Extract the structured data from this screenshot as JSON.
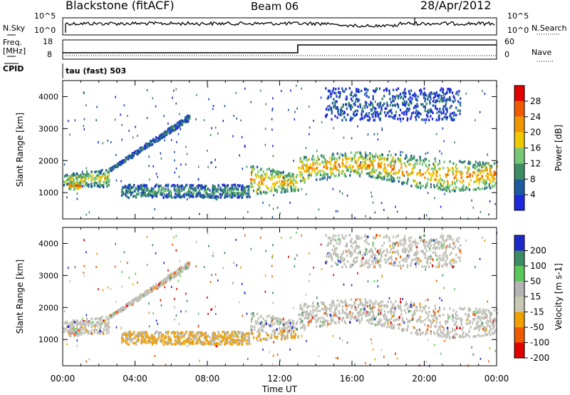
{
  "header": {
    "station": "Blackstone (fitACF)",
    "beam": "Beam 06",
    "date": "28/Apr/2012"
  },
  "sky_panel": {
    "left_label": "N.Sky",
    "right_label": "N.Search",
    "left_ticks": [
      "10^5",
      "10^0"
    ],
    "right_ticks": [
      "10^5",
      "10^0"
    ]
  },
  "freq_panel": {
    "left_label_top": "Freq.",
    "left_label_bottom": "[MHz]",
    "right_label": "Nave",
    "left_ticks": [
      "18",
      "8"
    ],
    "right_ticks": [
      "60",
      "0"
    ],
    "cpid_label": "CPID",
    "cpid_text": "tau (fast) 503",
    "freq_step_hour": 13.0
  },
  "chart_data": [
    {
      "type": "heatmap",
      "name": "power",
      "ylabel": "Slant Range [km]",
      "xlabel": "Time UT",
      "xlim": [
        0,
        24
      ],
      "ylim": [
        180,
        4500
      ],
      "yticks": [
        "1000",
        "2000",
        "3000",
        "4000"
      ],
      "xticks": [
        "00:00",
        "04:00",
        "08:00",
        "12:00",
        "16:00",
        "20:00",
        "00:00"
      ],
      "colorbar": {
        "label": "Power [dB]",
        "ticks": [
          "28",
          "24",
          "20",
          "16",
          "12",
          "8",
          "4"
        ],
        "colors": [
          "#e00000",
          "#f05a00",
          "#f09600",
          "#f0c800",
          "#78c878",
          "#3c8c64",
          "#1e5aa0",
          "#1e28dc"
        ]
      },
      "bands": [
        {
          "t0": 0.0,
          "t1": 2.6,
          "r0": 1250,
          "r1": 1750,
          "level": 0.55
        },
        {
          "t0": 0.3,
          "t1": 1.0,
          "r0": 1150,
          "r1": 1350,
          "level": 0.85
        },
        {
          "t0": 2.6,
          "t1": 7.0,
          "r0": 1700,
          "r1": 3400,
          "level": 0.25
        },
        {
          "t0": 3.2,
          "t1": 10.3,
          "r0": 880,
          "r1": 1280,
          "level": 0.35
        },
        {
          "t0": 10.3,
          "t1": 13.0,
          "r0": 950,
          "r1": 1900,
          "level": 0.7
        },
        {
          "t0": 13.0,
          "t1": 24.0,
          "r0": 1300,
          "r1": 2200,
          "level": 0.7
        },
        {
          "t0": 14.5,
          "t1": 22.0,
          "r0": 3300,
          "r1": 4300,
          "level": 0.2
        }
      ]
    },
    {
      "type": "heatmap",
      "name": "velocity",
      "ylabel": "Slant Range [km]",
      "xlabel": "Time UT",
      "xlim": [
        0,
        24
      ],
      "ylim": [
        180,
        4500
      ],
      "yticks": [
        "1000",
        "2000",
        "3000",
        "4000"
      ],
      "xticks": [
        "00:00",
        "04:00",
        "08:00",
        "12:00",
        "16:00",
        "20:00",
        "00:00"
      ],
      "colorbar": {
        "label": "Velocity [m s-1]",
        "ticks": [
          "200",
          "100",
          "50",
          "15",
          "-15",
          "-50",
          "-100",
          "-200"
        ],
        "colors": [
          "#1e28c8",
          "#3c8c64",
          "#5ac85a",
          "#b4b4b4",
          "#c8c8b4",
          "#f0a000",
          "#f05a00",
          "#e00000"
        ]
      }
    }
  ]
}
